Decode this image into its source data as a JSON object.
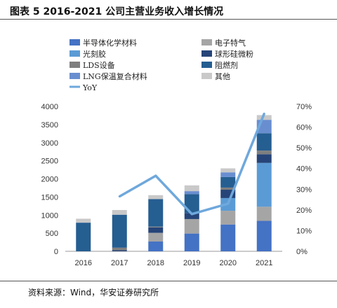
{
  "title": "图表 5 2016-2021 公司主营业务收入增长情况",
  "source": "资料来源：Wind，华安证券研究所",
  "chart_data": {
    "type": "bar",
    "stacked": true,
    "categories": [
      "2016",
      "2017",
      "2018",
      "2019",
      "2020",
      "2021"
    ],
    "ylim": [
      0,
      4000
    ],
    "y_ticks": [
      0,
      500,
      1000,
      1500,
      2000,
      2500,
      3000,
      3500,
      4000
    ],
    "y2lim": [
      0,
      0.7
    ],
    "y2_ticks": [
      "0%",
      "10%",
      "20%",
      "30%",
      "40%",
      "50%",
      "60%",
      "70%"
    ],
    "grid": false,
    "legend_position": "top",
    "series": [
      {
        "name": "半导体化学材料",
        "color": "#4472C4",
        "values": [
          0,
          0,
          270,
          490,
          740,
          840
        ]
      },
      {
        "name": "电子特气",
        "color": "#A5A5A5",
        "values": [
          0,
          0,
          240,
          400,
          380,
          390
        ]
      },
      {
        "name": "光刻胶",
        "color": "#5B9BD5",
        "values": [
          0,
          0,
          0,
          0,
          350,
          1210
        ]
      },
      {
        "name": "球形硅微粉",
        "color": "#264478",
        "values": [
          0,
          30,
          150,
          160,
          230,
          240
        ]
      },
      {
        "name": "LDS设备",
        "color": "#7F7F7F",
        "values": [
          0,
          70,
          20,
          0,
          60,
          100
        ]
      },
      {
        "name": "阻燃剂",
        "color": "#255E91",
        "values": [
          790,
          910,
          760,
          530,
          290,
          480
        ]
      },
      {
        "name": "LNG保温复合材料",
        "color": "#698ED0",
        "values": [
          0,
          0,
          0,
          80,
          130,
          370
        ]
      },
      {
        "name": "其他",
        "color": "#C9C9C9",
        "values": [
          110,
          130,
          110,
          160,
          110,
          130
        ]
      }
    ],
    "line": {
      "name": "YoY",
      "color": "#6FA8DC",
      "axis": "right",
      "values": [
        null,
        0.265,
        0.365,
        0.18,
        0.23,
        0.665
      ]
    }
  }
}
